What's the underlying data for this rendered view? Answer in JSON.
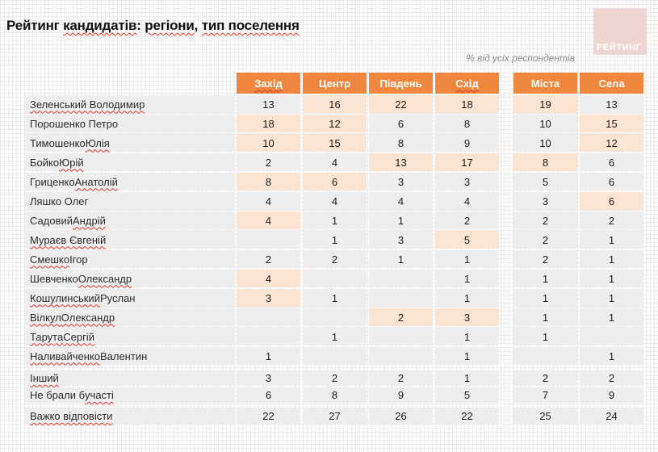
{
  "slide": {
    "title": "Рейтинг кандидатів: регіони, тип поселення",
    "note": "% від усіх респондентів",
    "logo_text": "РЕЙТИНГ"
  },
  "colors": {
    "header_orange": "#F0873E",
    "cell_highlight": "#FCE4D2",
    "cell_gray": "#EEEEEF",
    "logo_pink": "#EFD5D2",
    "spellcheck_red": "#E0342B"
  },
  "misspelled": [
    "Зеленський Володимир",
    "Мураєв Євгеній",
    "Важко відповісти",
    "тип поселення",
    "кандидатів",
    "регіони",
    "Захід",
    "Схід",
    "Юлія",
    "Юрій",
    "Анатолій",
    "Андрій",
    "Смешко",
    "Кошулинський",
    "Вілкул",
    "Олександр",
    "Тарута",
    "Сергій",
    "Наливайченко",
    "Інший",
    "участі"
  ],
  "table": {
    "column_groups": [
      {
        "name": "regions",
        "columns": [
          "Захід",
          "Центр",
          "Південь",
          "Схід"
        ]
      },
      {
        "name": "settlement-type",
        "columns": [
          "Міста",
          "Села"
        ]
      }
    ],
    "rows": [
      {
        "name": "Зеленський Володимир",
        "values": [
          "13",
          "16",
          "22",
          "18",
          "19",
          "13"
        ],
        "highlight": [
          0,
          1,
          1,
          1,
          1,
          0
        ]
      },
      {
        "name": "Порошенко Петро",
        "values": [
          "18",
          "12",
          "6",
          "8",
          "10",
          "15"
        ],
        "highlight": [
          1,
          1,
          0,
          0,
          0,
          1
        ]
      },
      {
        "name": "Тимошенко Юлія",
        "values": [
          "10",
          "15",
          "8",
          "9",
          "10",
          "12"
        ],
        "highlight": [
          1,
          1,
          0,
          0,
          0,
          1
        ]
      },
      {
        "name": "Бойко Юрій",
        "values": [
          "2",
          "4",
          "13",
          "17",
          "8",
          "6"
        ],
        "highlight": [
          0,
          0,
          1,
          1,
          1,
          0
        ]
      },
      {
        "name": "Гриценко Анатолій",
        "values": [
          "8",
          "6",
          "3",
          "3",
          "5",
          "6"
        ],
        "highlight": [
          1,
          1,
          0,
          0,
          0,
          0
        ]
      },
      {
        "name": "Ляшко Олег",
        "values": [
          "4",
          "4",
          "4",
          "4",
          "3",
          "6"
        ],
        "highlight": [
          0,
          0,
          0,
          0,
          0,
          1
        ]
      },
      {
        "name": "Садовий Андрій",
        "values": [
          "4",
          "1",
          "1",
          "2",
          "2",
          "2"
        ],
        "highlight": [
          1,
          0,
          0,
          0,
          0,
          0
        ]
      },
      {
        "name": "Мураєв Євгеній",
        "values": [
          "",
          "1",
          "3",
          "5",
          "2",
          "1"
        ],
        "highlight": [
          0,
          0,
          0,
          1,
          0,
          0
        ]
      },
      {
        "name": "Смешко Ігор",
        "values": [
          "2",
          "2",
          "1",
          "1",
          "2",
          "1"
        ],
        "highlight": [
          0,
          0,
          0,
          0,
          0,
          0
        ]
      },
      {
        "name": "Шевченко Олександр",
        "values": [
          "4",
          "",
          "",
          "1",
          "1",
          "1"
        ],
        "highlight": [
          1,
          0,
          0,
          0,
          0,
          0
        ]
      },
      {
        "name": "Кошулинський Руслан",
        "values": [
          "3",
          "1",
          "",
          "1",
          "1",
          "1"
        ],
        "highlight": [
          1,
          0,
          0,
          0,
          0,
          0
        ]
      },
      {
        "name": "Вілкул Олександр",
        "values": [
          "",
          "",
          "2",
          "3",
          "1",
          "1"
        ],
        "highlight": [
          0,
          0,
          1,
          1,
          0,
          0
        ]
      },
      {
        "name": "Тарута Сергій",
        "values": [
          "",
          "1",
          "",
          "1",
          "1",
          ""
        ],
        "highlight": [
          0,
          0,
          0,
          0,
          0,
          0
        ]
      },
      {
        "name": "Наливайченко Валентин",
        "values": [
          "1",
          "",
          "",
          "1",
          "",
          "1"
        ],
        "highlight": [
          0,
          0,
          0,
          0,
          0,
          0
        ]
      },
      {
        "name": "Інший",
        "values": [
          "3",
          "2",
          "2",
          "1",
          "2",
          "2"
        ],
        "highlight": [
          0,
          0,
          0,
          0,
          0,
          0
        ],
        "small": true,
        "gap_before": true
      },
      {
        "name": "Не брали б участі",
        "values": [
          "6",
          "8",
          "9",
          "5",
          "7",
          "9"
        ],
        "highlight": [
          0,
          0,
          0,
          0,
          0,
          0
        ],
        "small": true
      },
      {
        "name": "Важко відповісти",
        "values": [
          "22",
          "27",
          "26",
          "22",
          "25",
          "24"
        ],
        "highlight": [
          0,
          0,
          0,
          0,
          0,
          0
        ],
        "small": true,
        "gap_before": true
      }
    ]
  }
}
